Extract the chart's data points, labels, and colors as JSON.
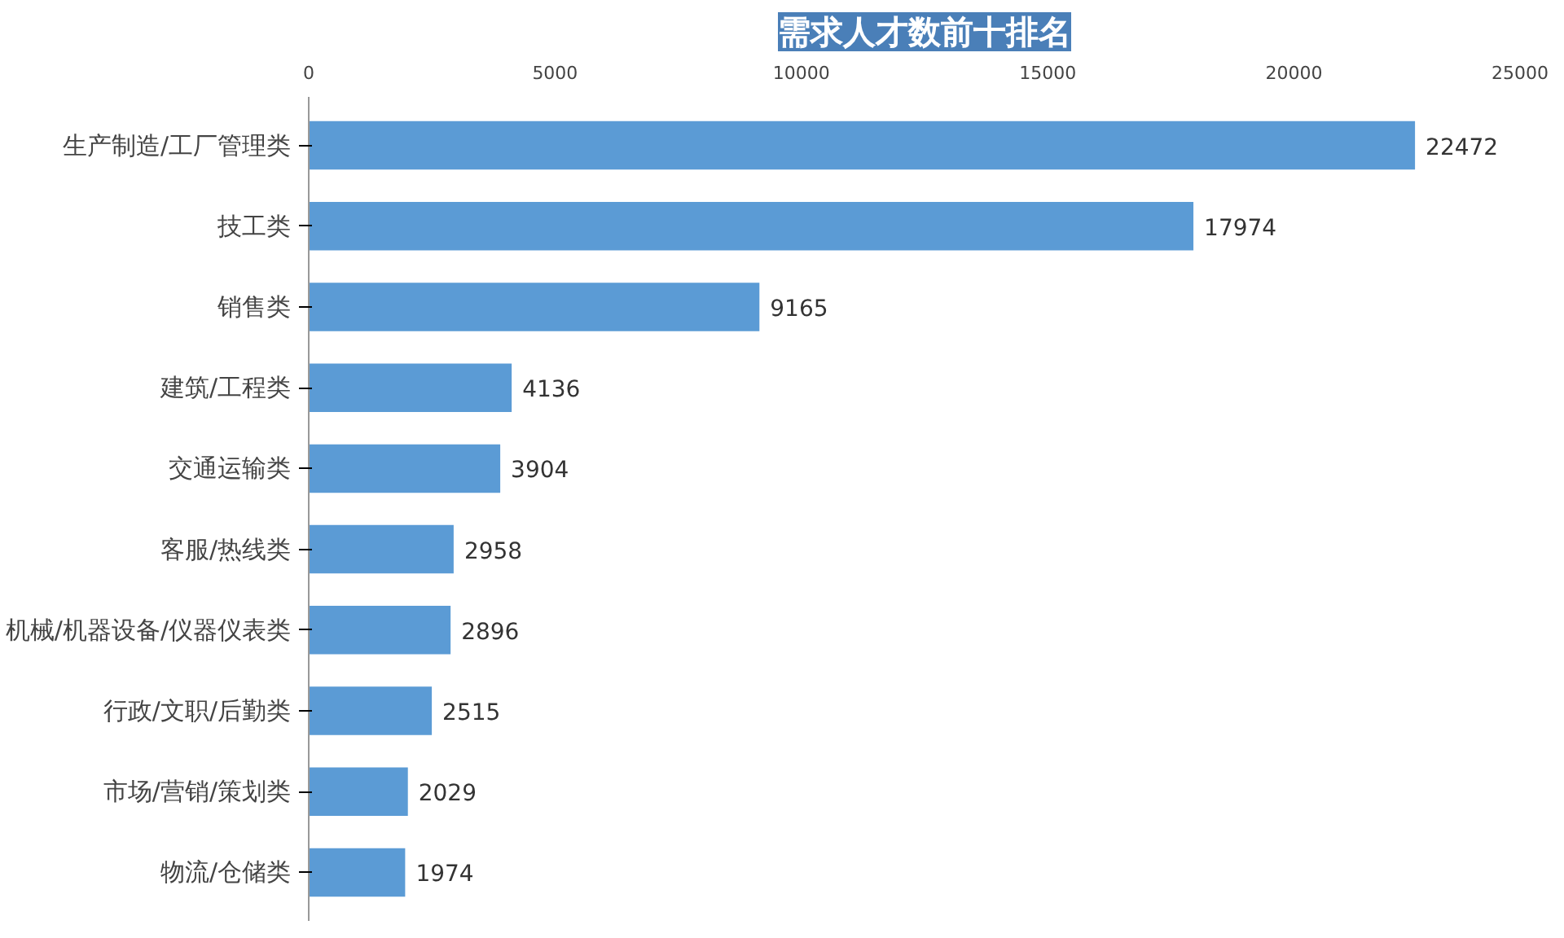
{
  "chart_data": {
    "type": "bar",
    "orientation": "horizontal",
    "title": "需求人才数前十排名",
    "categories": [
      "生产制造/工厂管理类",
      "技工类",
      "销售类",
      "建筑/工程类",
      "交通运输类",
      "客服/热线类",
      "机械/机器设备/仪器仪表类",
      "行政/文职/后勤类",
      "市场/营销/策划类",
      "物流/仓储类"
    ],
    "values": [
      22472,
      17974,
      9165,
      4136,
      3904,
      2958,
      2896,
      2515,
      2029,
      1974
    ],
    "color": "#5b9bd5",
    "xlim": [
      0,
      25000
    ],
    "xticks": [
      0,
      5000,
      10000,
      15000,
      20000,
      25000
    ],
    "grid": false,
    "data_labels": true
  }
}
